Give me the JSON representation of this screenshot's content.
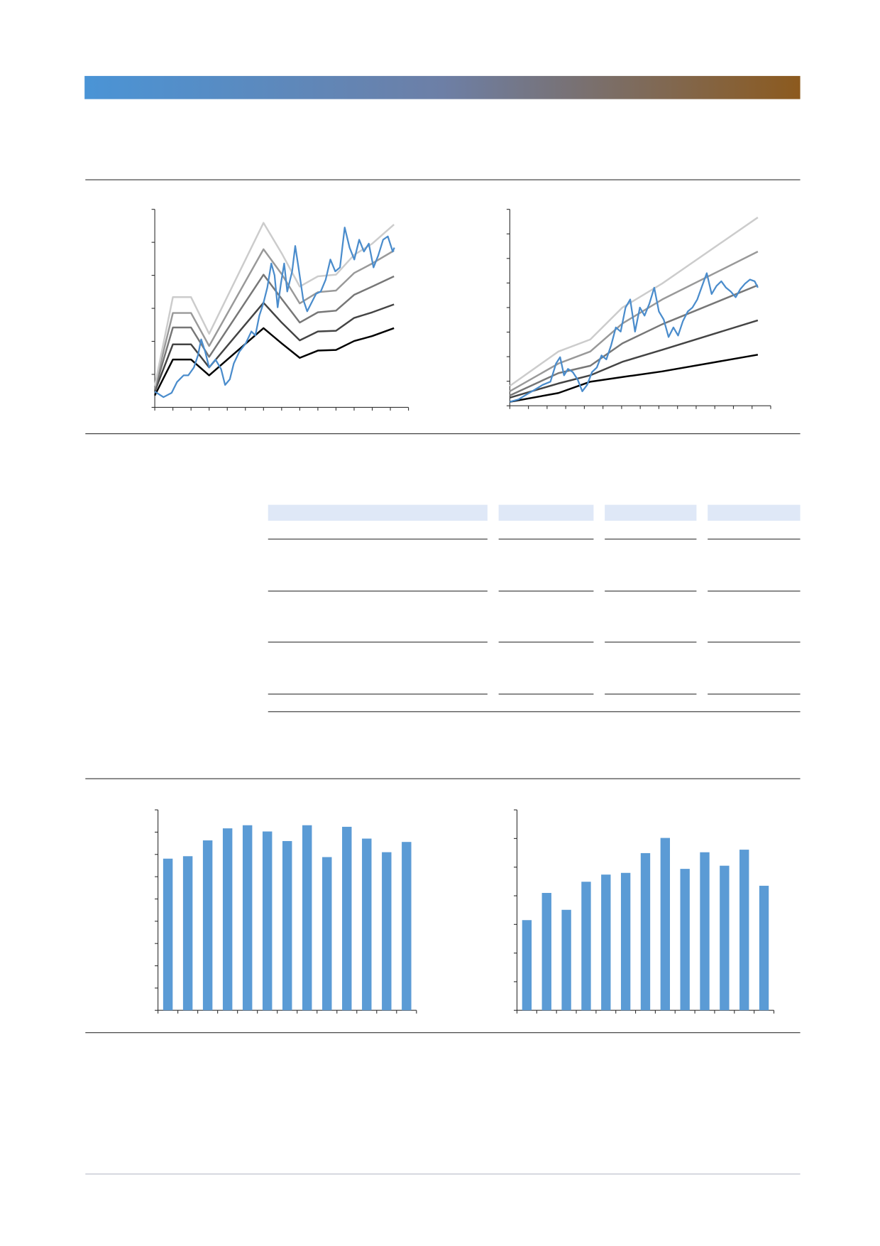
{
  "chart_data": [
    {
      "type": "line",
      "xlim": [
        0,
        14
      ],
      "xticks": [
        0,
        1,
        2,
        3,
        4,
        5,
        6,
        7,
        8,
        9,
        10,
        11,
        12,
        13,
        14
      ],
      "ylim": [
        0,
        6
      ],
      "yticks": [
        0,
        1,
        2,
        3,
        4,
        5,
        6
      ],
      "series": [
        {
          "color": "#000000",
          "x": [
            0,
            1,
            2,
            3,
            6,
            7,
            8,
            9,
            10,
            11,
            12,
            13.2
          ],
          "values": [
            0.36,
            1.45,
            1.45,
            0.97,
            2.4,
            1.94,
            1.5,
            1.72,
            1.74,
            2.01,
            2.16,
            2.4
          ]
        },
        {
          "color": "#444444",
          "x": [
            0,
            1,
            2,
            3,
            6,
            7,
            8,
            9,
            10,
            11,
            12,
            13.2
          ],
          "values": [
            0.48,
            1.91,
            1.91,
            1.21,
            3.17,
            2.57,
            2.03,
            2.3,
            2.32,
            2.71,
            2.88,
            3.12
          ]
        },
        {
          "color": "#777777",
          "x": [
            0,
            1,
            2,
            3,
            6,
            7,
            8,
            9,
            10,
            11,
            12,
            13.2
          ],
          "values": [
            0.53,
            2.42,
            2.42,
            1.53,
            4.02,
            3.29,
            2.57,
            2.88,
            2.93,
            3.41,
            3.66,
            3.97
          ]
        },
        {
          "color": "#999999",
          "x": [
            0,
            1,
            2,
            3,
            6,
            7,
            8,
            9,
            10,
            11,
            12,
            13.2
          ],
          "values": [
            0.61,
            2.86,
            2.86,
            1.86,
            4.79,
            4.04,
            3.15,
            3.49,
            3.54,
            4.07,
            4.36,
            4.75
          ]
        },
        {
          "color": "#cccccc",
          "x": [
            0,
            1,
            2,
            3,
            6,
            7,
            8,
            9,
            10,
            11,
            12,
            13.2
          ],
          "values": [
            0.65,
            3.34,
            3.34,
            2.23,
            5.59,
            4.67,
            3.66,
            3.97,
            4.02,
            4.62,
            4.96,
            5.54
          ]
        },
        {
          "color": "#4a8ccc",
          "x": [
            0,
            0.48,
            0.93,
            1.23,
            1.59,
            1.85,
            2.16,
            2.38,
            2.56,
            2.78,
            3.0,
            3.35,
            3.66,
            3.88,
            4.14,
            4.36,
            4.67,
            5.02,
            5.33,
            5.55,
            5.77,
            5.99,
            6.21,
            6.43,
            6.61,
            6.78,
            6.96,
            7.14,
            7.31,
            7.58,
            7.75,
            7.93,
            8.19,
            8.41,
            8.63,
            8.9,
            9.16,
            9.43,
            9.69,
            9.96,
            10.22,
            10.48,
            10.75,
            11.01,
            11.28,
            11.54,
            11.81,
            12.07,
            12.33,
            12.6,
            12.86,
            13.13,
            13.22
          ],
          "values": [
            0.48,
            0.31,
            0.44,
            0.77,
            0.97,
            0.97,
            1.21,
            1.57,
            2.06,
            1.69,
            1.21,
            1.45,
            1.16,
            0.68,
            0.85,
            1.33,
            1.69,
            1.94,
            2.3,
            2.18,
            2.78,
            3.15,
            3.63,
            4.36,
            4.0,
            3.03,
            3.75,
            4.36,
            3.51,
            4.12,
            4.89,
            4.24,
            3.27,
            2.91,
            3.15,
            3.44,
            3.51,
            3.87,
            4.48,
            4.12,
            4.24,
            5.45,
            4.84,
            4.48,
            5.08,
            4.72,
            4.96,
            4.24,
            4.6,
            5.08,
            5.18,
            4.72,
            4.84
          ]
        }
      ]
    },
    {
      "type": "line",
      "xlim": [
        0,
        14
      ],
      "xticks": [
        0,
        1,
        2,
        3,
        4,
        5,
        6,
        7,
        8,
        9,
        10,
        11,
        12,
        13,
        14
      ],
      "ylim": [
        0,
        8
      ],
      "yticks": [
        0,
        1,
        2,
        3,
        4,
        5,
        6,
        7,
        8
      ],
      "series": [
        {
          "color": "#000000",
          "x": [
            0,
            2.61,
            4.32,
            6.04,
            8.18,
            13.31
          ],
          "values": [
            0.16,
            0.52,
            0.98,
            1.17,
            1.4,
            2.08
          ]
        },
        {
          "color": "#444444",
          "x": [
            0,
            2.61,
            4.32,
            6.04,
            8.18,
            13.31
          ],
          "values": [
            0.33,
            0.91,
            1.24,
            1.79,
            2.28,
            3.48
          ]
        },
        {
          "color": "#777777",
          "x": [
            0,
            2.61,
            4.32,
            6.04,
            8.18,
            13.31
          ],
          "values": [
            0.42,
            1.33,
            1.63,
            2.54,
            3.32,
            4.91
          ]
        },
        {
          "color": "#999999",
          "x": [
            0,
            2.61,
            4.32,
            6.04,
            8.18,
            13.31
          ],
          "values": [
            0.59,
            1.72,
            2.21,
            3.35,
            4.33,
            6.28
          ]
        },
        {
          "color": "#cccccc",
          "x": [
            0,
            2.61,
            4.32,
            6.04,
            8.18,
            13.31
          ],
          "values": [
            0.81,
            2.21,
            2.7,
            4.0,
            4.98,
            7.67
          ]
        },
        {
          "color": "#4a8ccc",
          "x": [
            0,
            0.47,
            0.9,
            1.33,
            1.76,
            2.18,
            2.48,
            2.7,
            2.91,
            3.12,
            3.38,
            3.64,
            3.89,
            4.15,
            4.41,
            4.67,
            4.92,
            5.18,
            5.44,
            5.69,
            5.95,
            6.21,
            6.46,
            6.72,
            6.98,
            7.23,
            7.49,
            7.75,
            8.0,
            8.26,
            8.52,
            8.78,
            9.03,
            9.29,
            9.55,
            9.8,
            10.06,
            10.32,
            10.57,
            10.83,
            11.09,
            11.35,
            11.6,
            11.86,
            12.12,
            12.37,
            12.63,
            12.89,
            13.14,
            13.31
          ],
          "values": [
            0.16,
            0.26,
            0.46,
            0.65,
            0.85,
            0.98,
            1.72,
            1.98,
            1.24,
            1.5,
            1.37,
            1.07,
            0.59,
            0.85,
            1.37,
            1.56,
            2.05,
            1.89,
            2.47,
            3.19,
            3.02,
            4.0,
            4.33,
            3.02,
            4.0,
            3.67,
            4.16,
            4.81,
            3.84,
            3.51,
            2.8,
            3.19,
            2.86,
            3.45,
            3.84,
            4.0,
            4.33,
            4.88,
            5.4,
            4.55,
            4.88,
            5.07,
            4.81,
            4.65,
            4.42,
            4.75,
            4.98,
            5.14,
            5.07,
            4.81
          ]
        }
      ]
    },
    {
      "type": "bar",
      "color": "#5b9bd5",
      "ylim": [
        0,
        9
      ],
      "yticks": [
        0,
        1,
        2,
        3,
        4,
        5,
        6,
        7,
        8,
        9
      ],
      "values": [
        6.81,
        6.92,
        7.63,
        8.17,
        8.31,
        8.03,
        7.6,
        8.31,
        6.88,
        8.24,
        7.71,
        7.1,
        7.56
      ]
    },
    {
      "type": "bar",
      "color": "#5b9bd5",
      "ylim": [
        0,
        7
      ],
      "yticks": [
        0,
        1,
        2,
        3,
        4,
        5,
        6,
        7
      ],
      "values": [
        3.15,
        4.1,
        3.51,
        4.49,
        4.74,
        4.8,
        5.49,
        6.02,
        4.94,
        5.52,
        5.05,
        5.61,
        4.35
      ]
    }
  ]
}
